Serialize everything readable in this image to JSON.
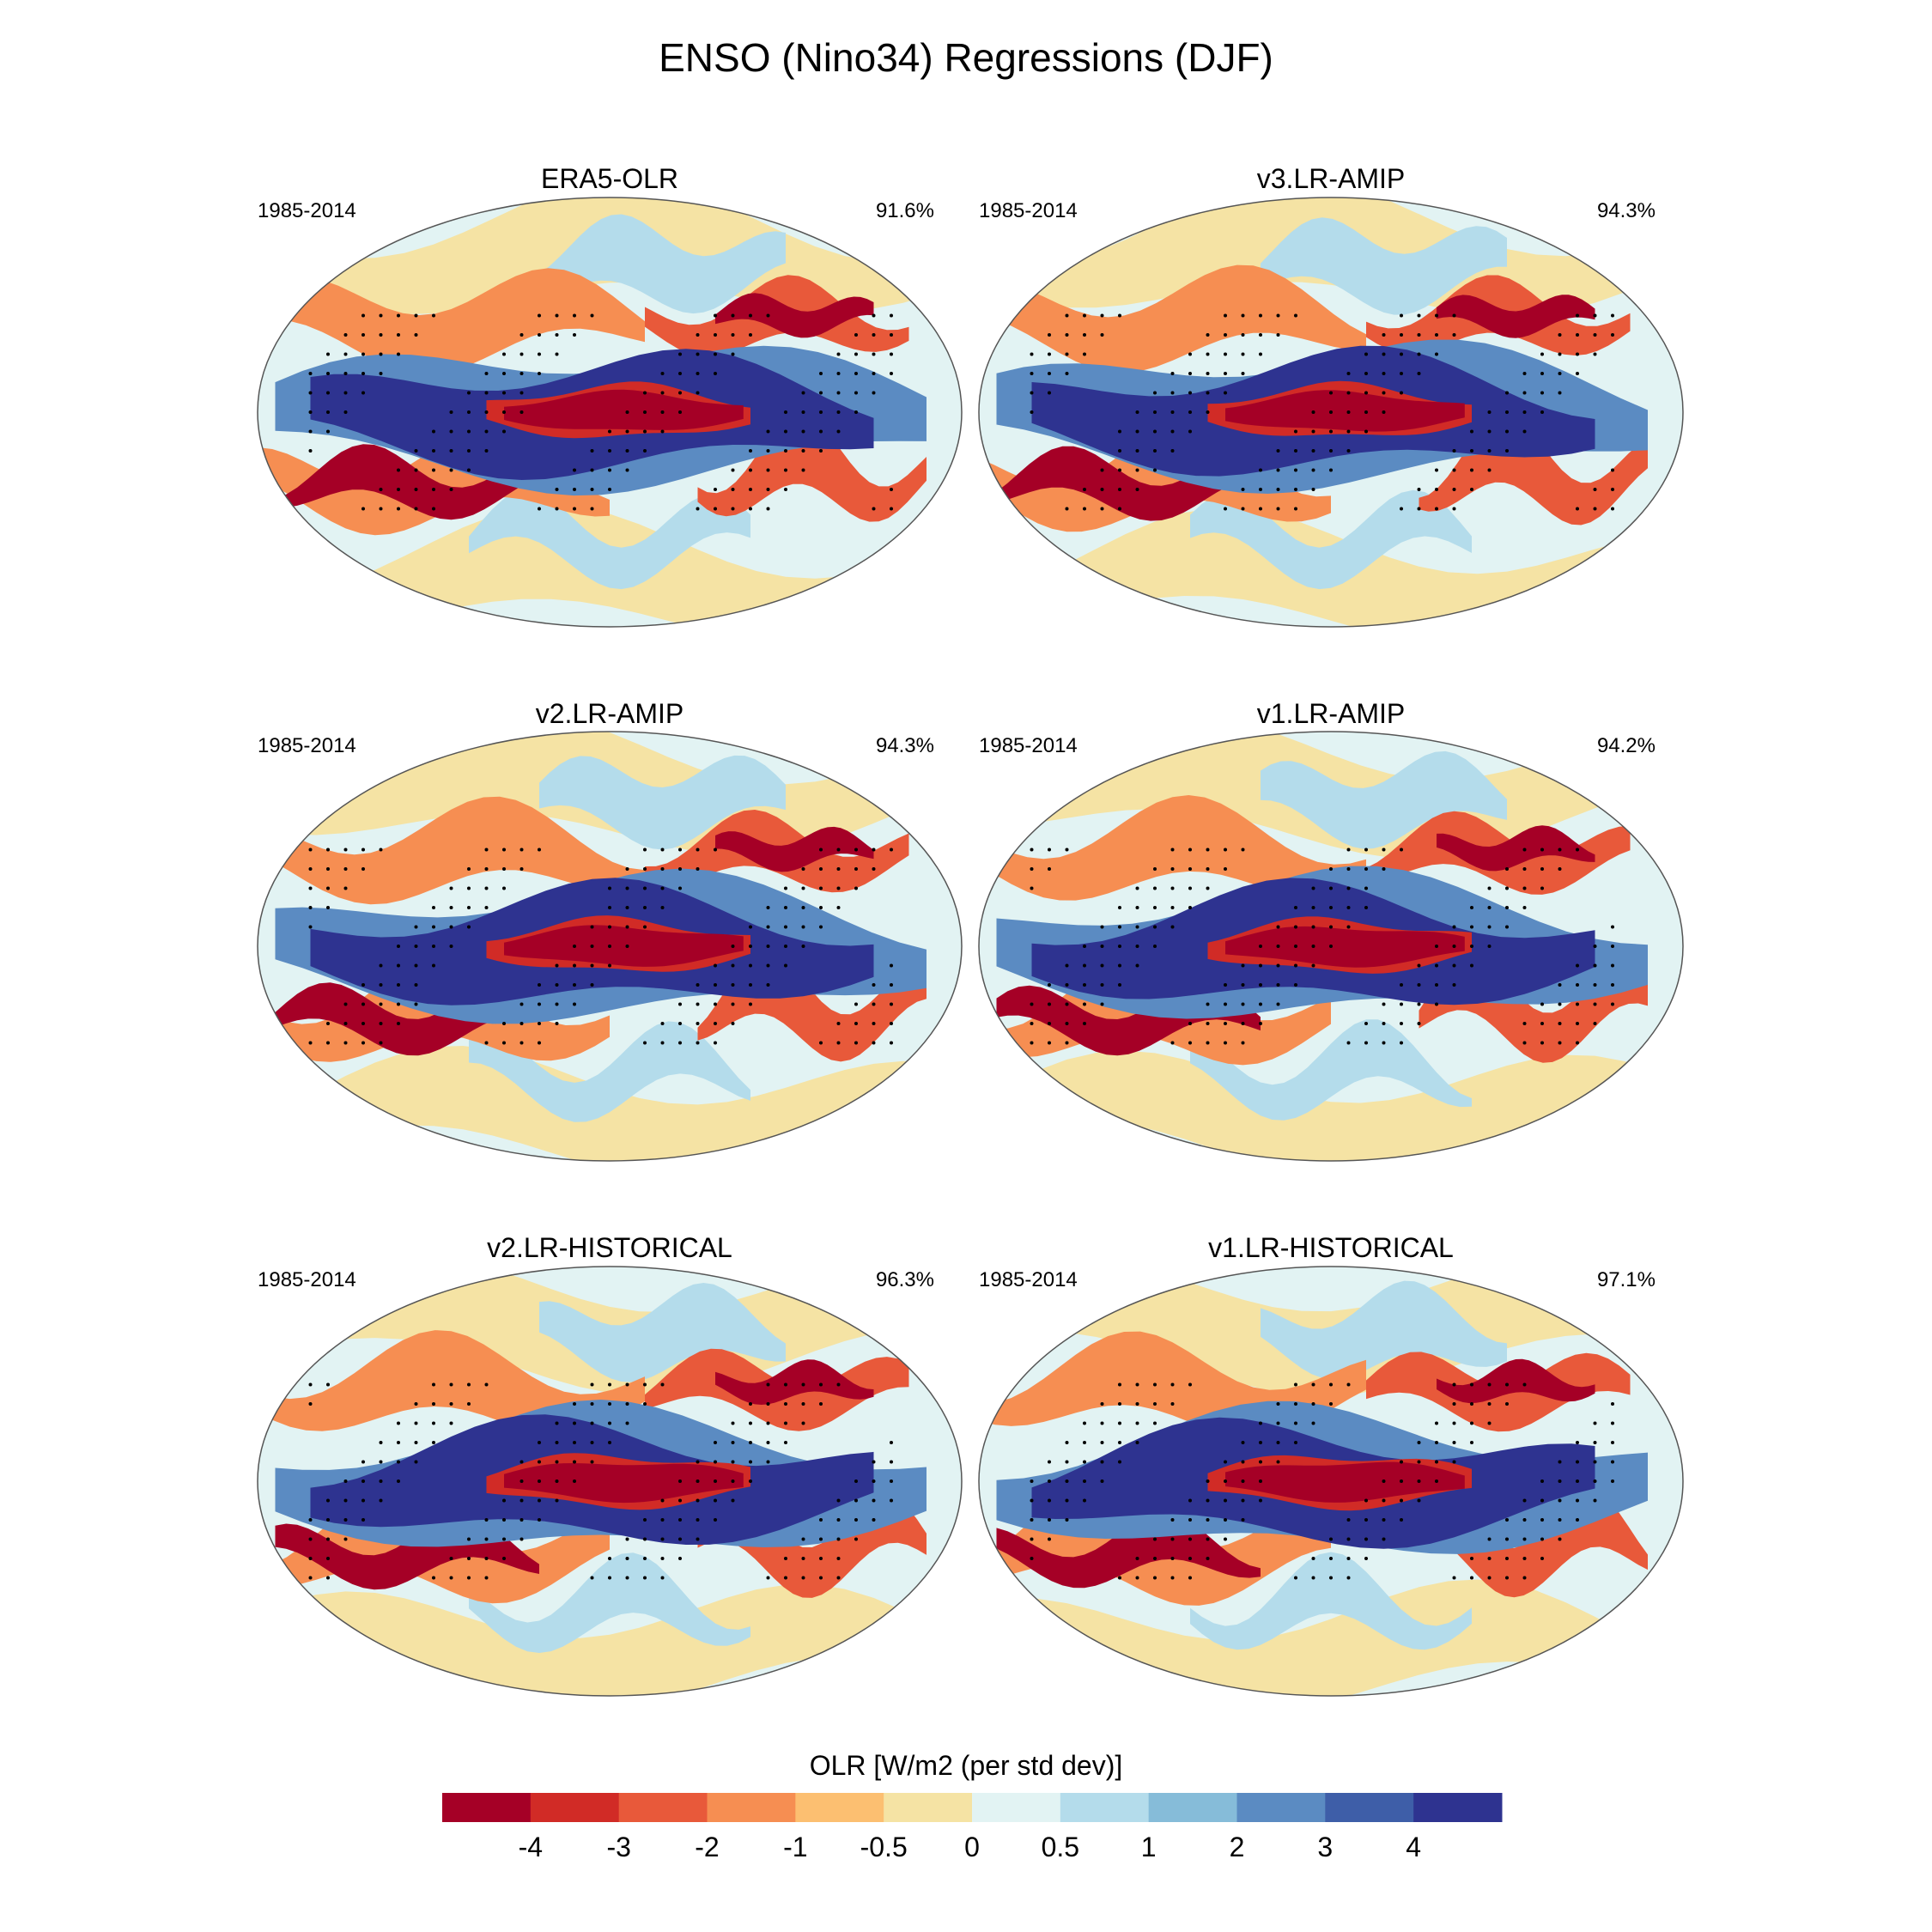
{
  "figure_title": "ENSO (Nino34) Regressions (DJF)",
  "chart_data": [
    {
      "type": "heatmap",
      "panel_title": "ERA5-OLR",
      "years": "1985-2014",
      "score": "91.6%"
    },
    {
      "type": "heatmap",
      "panel_title": "v3.LR-AMIP",
      "years": "1985-2014",
      "score": "94.3%"
    },
    {
      "type": "heatmap",
      "panel_title": "v2.LR-AMIP",
      "years": "1985-2014",
      "score": "94.3%"
    },
    {
      "type": "heatmap",
      "panel_title": "v1.LR-AMIP",
      "years": "1985-2014",
      "score": "94.2%"
    },
    {
      "type": "heatmap",
      "panel_title": "v2.LR-HISTORICAL",
      "years": "1985-2014",
      "score": "96.3%"
    },
    {
      "type": "heatmap",
      "panel_title": "v1.LR-HISTORICAL",
      "years": "1985-2014",
      "score": "97.1%"
    }
  ],
  "colorbar": {
    "title": "OLR [W/m2 (per std dev)]",
    "tick_labels": [
      "-4",
      "-3",
      "-2",
      "-1",
      "-0.5",
      "0",
      "0.5",
      "1",
      "2",
      "3",
      "4"
    ],
    "colors": [
      "#a50026",
      "#d12b26",
      "#e8593a",
      "#f68e52",
      "#fcbf71",
      "#f5e3a4",
      "#e2f3f3",
      "#b4dceb",
      "#86bcd9",
      "#5b8bc2",
      "#3e5ea8",
      "#2e3390"
    ]
  }
}
